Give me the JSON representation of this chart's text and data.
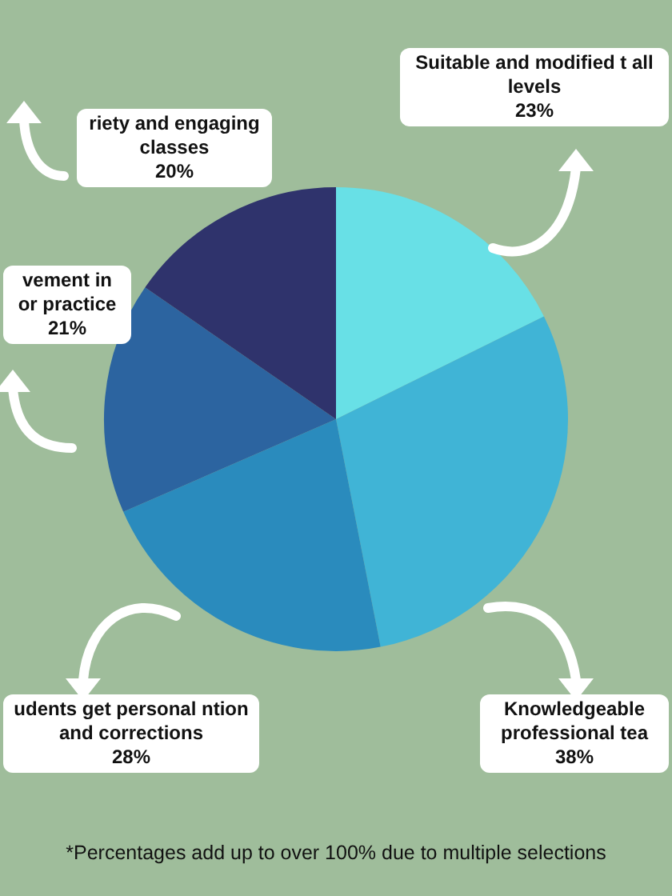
{
  "chart_data": {
    "type": "pie",
    "categories": [
      "Suitable and modified t all levels",
      "Knowledgeable professional tea",
      "udents get personal ntion and corrections",
      "vement in or practice",
      "riety and engaging classes"
    ],
    "values": [
      23,
      38,
      28,
      21,
      20
    ],
    "value_labels": [
      "23%",
      "38%",
      "28%",
      "21%",
      "20%"
    ],
    "colors": [
      "#68e0e6",
      "#40b4d6",
      "#2a8bbd",
      "#2c64a0",
      "#2f336c"
    ],
    "legend": false,
    "annotations": [
      "*Percentages add up to over 100% due to multiple selections"
    ]
  }
}
